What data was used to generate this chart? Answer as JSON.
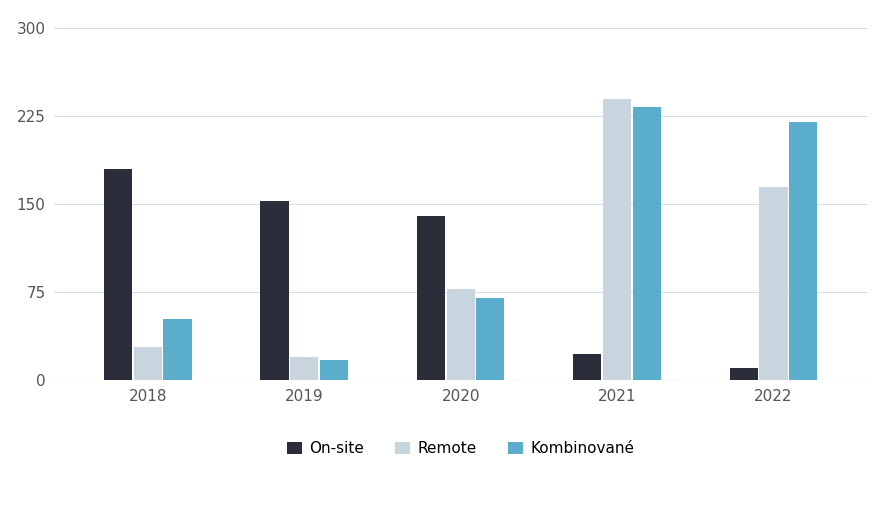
{
  "years": [
    "2018",
    "2019",
    "2020",
    "2021",
    "2022"
  ],
  "onsite": [
    180,
    153,
    140,
    22,
    10
  ],
  "remote": [
    28,
    20,
    78,
    240,
    165
  ],
  "kombinovane": [
    52,
    17,
    70,
    233,
    220
  ],
  "bar_colors": {
    "onsite": "#2b2d3b",
    "remote": "#c8d5de",
    "kombinovane": "#5aaecc"
  },
  "legend_labels": [
    "On-site",
    "Remote",
    "Kombinované"
  ],
  "ylim": [
    0,
    310
  ],
  "yticks": [
    0,
    75,
    150,
    225,
    300
  ],
  "ytick_labels": [
    "0",
    "75",
    "150",
    "225",
    "300"
  ],
  "background_color": "#ffffff",
  "grid_color": "#d8dde2",
  "bar_width": 0.18,
  "figsize": [
    8.84,
    5.14
  ],
  "dpi": 100
}
